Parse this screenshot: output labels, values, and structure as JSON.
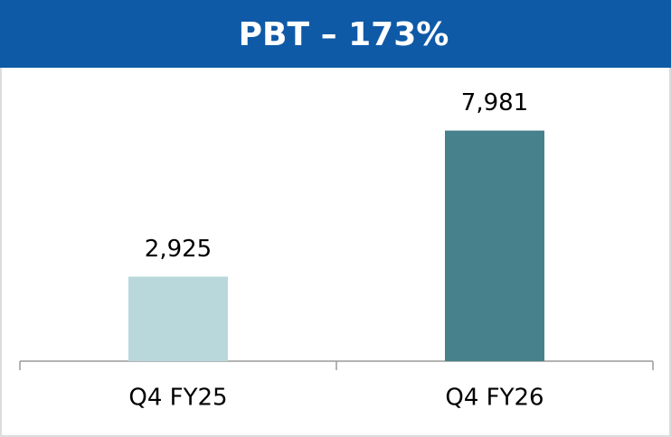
{
  "chart_data": {
    "type": "bar",
    "title": "PBT – 173%",
    "categories": [
      "Q4 FY25",
      "Q4 FY26"
    ],
    "values": [
      2925,
      7981
    ],
    "value_labels": [
      "2,925",
      "7,981"
    ],
    "colors": [
      "#b9d8dc",
      "#47818b"
    ],
    "ylim": [
      0,
      10000
    ]
  }
}
